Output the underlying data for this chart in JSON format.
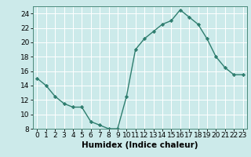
{
  "x": [
    0,
    1,
    2,
    3,
    4,
    5,
    6,
    7,
    8,
    9,
    10,
    11,
    12,
    13,
    14,
    15,
    16,
    17,
    18,
    19,
    20,
    21,
    22,
    23
  ],
  "y": [
    15.0,
    14.0,
    12.5,
    11.5,
    11.0,
    11.0,
    9.0,
    8.5,
    8.0,
    8.0,
    12.5,
    19.0,
    20.5,
    21.5,
    22.5,
    23.0,
    24.5,
    23.5,
    22.5,
    20.5,
    18.0,
    16.5,
    15.5,
    15.5
  ],
  "line_color": "#2e7d6e",
  "marker": "D",
  "markersize": 2.2,
  "linewidth": 1.0,
  "bg_color": "#cceaea",
  "grid_color": "#ffffff",
  "xlabel": "Humidex (Indice chaleur)",
  "xlim": [
    -0.5,
    23.5
  ],
  "ylim": [
    8,
    25
  ],
  "yticks": [
    8,
    10,
    12,
    14,
    16,
    18,
    20,
    22,
    24
  ],
  "xticks": [
    0,
    1,
    2,
    3,
    4,
    5,
    6,
    7,
    8,
    9,
    10,
    11,
    12,
    13,
    14,
    15,
    16,
    17,
    18,
    19,
    20,
    21,
    22,
    23
  ],
  "xlabel_fontsize": 7.5,
  "tick_fontsize": 6.5
}
